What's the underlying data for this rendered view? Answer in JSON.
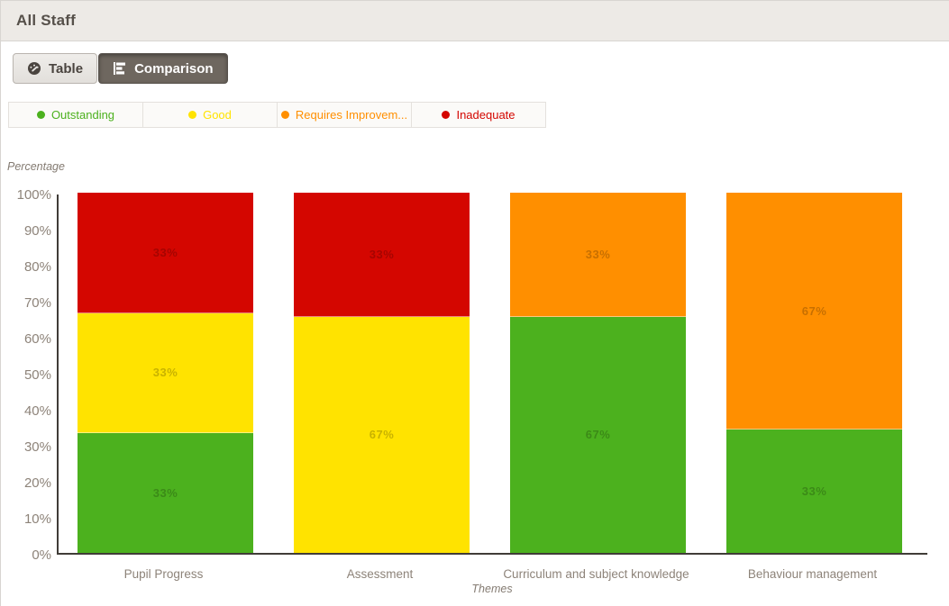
{
  "header": {
    "title": "All Staff"
  },
  "toolbar": {
    "buttons": [
      {
        "label": "Table",
        "icon": "gauge-icon",
        "active": false
      },
      {
        "label": "Comparison",
        "icon": "horizontal-bar-chart-icon",
        "active": true
      }
    ]
  },
  "legend": {
    "items": [
      {
        "label": "Outstanding",
        "color": "#4cb11e"
      },
      {
        "label": "Good",
        "color": "#ffe300"
      },
      {
        "label": "Requires Improvem...",
        "color": "#ff8f00"
      },
      {
        "label": "Inadequate",
        "color": "#d40600"
      }
    ]
  },
  "chart_data": {
    "type": "bar",
    "stacked": true,
    "percentage": true,
    "title": "",
    "xlabel": "Themes",
    "ylabel": "Percentage",
    "ylim": [
      0,
      100
    ],
    "yticks": [
      "100%",
      "90%",
      "80%",
      "70%",
      "60%",
      "50%",
      "40%",
      "30%",
      "20%",
      "10%",
      "0%"
    ],
    "grid": false,
    "legend_position": "top",
    "categories": [
      "Pupil Progress",
      "Assessment",
      "Curriculum and subject knowledge",
      "Behaviour management"
    ],
    "series": [
      {
        "name": "Outstanding",
        "color": "#4cb11e",
        "values": [
          33,
          0,
          67,
          33
        ]
      },
      {
        "name": "Good",
        "color": "#ffe300",
        "values": [
          33,
          67,
          0,
          0
        ]
      },
      {
        "name": "Requires Improvem...",
        "color": "#ff8f00",
        "values": [
          0,
          0,
          33,
          67
        ]
      },
      {
        "name": "Inadequate",
        "color": "#d40600",
        "values": [
          33,
          33,
          0,
          0
        ]
      }
    ],
    "segment_label_suffix": "%"
  }
}
